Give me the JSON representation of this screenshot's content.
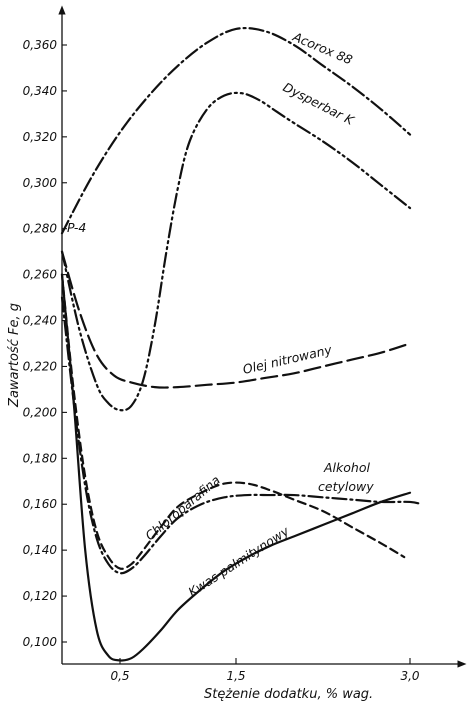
{
  "chart_data": {
    "type": "line",
    "title": "",
    "xlabel": "Stężenie dodatku, % wag.",
    "ylabel": "Zawartość Fe, g",
    "xlim": [
      0,
      3.2
    ],
    "ylim": [
      0.09,
      0.37
    ],
    "x_ticks": [
      {
        "value": 0.5,
        "label": "0,5"
      },
      {
        "value": 1.5,
        "label": "1,5"
      },
      {
        "value": 3.0,
        "label": "3,0"
      }
    ],
    "y_ticks": [
      {
        "value": 0.1,
        "label": "0,100"
      },
      {
        "value": 0.12,
        "label": "0,120"
      },
      {
        "value": 0.14,
        "label": "0,140"
      },
      {
        "value": 0.16,
        "label": "0,160"
      },
      {
        "value": 0.18,
        "label": "0,180"
      },
      {
        "value": 0.2,
        "label": "0,200"
      },
      {
        "value": 0.22,
        "label": "0,220"
      },
      {
        "value": 0.24,
        "label": "0,240"
      },
      {
        "value": 0.26,
        "label": "0,260"
      },
      {
        "value": 0.28,
        "label": "0,280"
      },
      {
        "value": 0.3,
        "label": "0,300"
      },
      {
        "value": 0.32,
        "label": "0,320"
      },
      {
        "value": 0.34,
        "label": "0,340"
      },
      {
        "value": 0.36,
        "label": "0,360"
      }
    ],
    "reference_label": "P-4",
    "reference_value": 0.27,
    "grid": false,
    "legend": "none",
    "series": [
      {
        "name": "Acorox 88",
        "dash": "dashdot",
        "x": [
          0,
          0.25,
          0.5,
          0.75,
          1.0,
          1.25,
          1.5,
          1.75,
          2.0,
          2.25,
          2.5,
          2.75,
          3.0
        ],
        "y": [
          0.278,
          0.302,
          0.322,
          0.338,
          0.351,
          0.361,
          0.367,
          0.366,
          0.36,
          0.351,
          0.342,
          0.332,
          0.321
        ]
      },
      {
        "name": "Dysperbar K",
        "dash": "dashdotdot",
        "x": [
          0,
          0.15,
          0.3,
          0.4,
          0.5,
          0.6,
          0.7,
          0.8,
          0.9,
          1.0,
          1.1,
          1.25,
          1.4,
          1.55,
          1.7,
          1.85,
          2.0,
          2.25,
          2.5,
          2.75,
          3.0
        ],
        "y": [
          0.27,
          0.236,
          0.212,
          0.204,
          0.201,
          0.203,
          0.214,
          0.238,
          0.27,
          0.298,
          0.318,
          0.332,
          0.338,
          0.339,
          0.336,
          0.331,
          0.326,
          0.318,
          0.309,
          0.299,
          0.289
        ]
      },
      {
        "name": "Olej nitrowany",
        "dash": "longdash",
        "x": [
          0,
          0.15,
          0.3,
          0.45,
          0.6,
          0.8,
          1.0,
          1.25,
          1.5,
          1.75,
          2.0,
          2.25,
          2.5,
          2.75,
          3.0
        ],
        "y": [
          0.27,
          0.244,
          0.225,
          0.216,
          0.213,
          0.211,
          0.211,
          0.212,
          0.213,
          0.215,
          0.217,
          0.22,
          0.223,
          0.226,
          0.23
        ]
      },
      {
        "name": "Chloroparafina",
        "dash": "dashdot",
        "x": [
          0,
          0.1,
          0.2,
          0.3,
          0.4,
          0.5,
          0.6,
          0.7,
          0.85,
          1.0,
          1.2,
          1.4,
          1.6,
          1.8,
          2.0,
          2.25,
          2.5,
          2.75,
          3.0,
          3.1
        ],
        "y": [
          0.25,
          0.205,
          0.168,
          0.145,
          0.134,
          0.13,
          0.132,
          0.137,
          0.146,
          0.154,
          0.16,
          0.163,
          0.164,
          0.164,
          0.164,
          0.163,
          0.162,
          0.161,
          0.161,
          0.16
        ]
      },
      {
        "name": "Alkohol cetylowy",
        "dash": "dash",
        "x": [
          0,
          0.1,
          0.2,
          0.3,
          0.4,
          0.5,
          0.6,
          0.7,
          0.85,
          1.0,
          1.2,
          1.4,
          1.6,
          1.8,
          2.0,
          2.25,
          2.5,
          2.75,
          2.95
        ],
        "y": [
          0.26,
          0.21,
          0.172,
          0.148,
          0.137,
          0.132,
          0.134,
          0.14,
          0.15,
          0.159,
          0.165,
          0.169,
          0.169,
          0.166,
          0.162,
          0.157,
          0.15,
          0.143,
          0.137
        ]
      },
      {
        "name": "Kwas palmitynowy",
        "dash": "solid",
        "x": [
          0,
          0.1,
          0.2,
          0.3,
          0.4,
          0.5,
          0.6,
          0.7,
          0.85,
          1.0,
          1.2,
          1.4,
          1.6,
          1.8,
          2.0,
          2.25,
          2.5,
          2.75,
          3.0
        ],
        "y": [
          0.26,
          0.205,
          0.14,
          0.105,
          0.094,
          0.092,
          0.093,
          0.097,
          0.105,
          0.114,
          0.123,
          0.131,
          0.137,
          0.142,
          0.146,
          0.151,
          0.156,
          0.161,
          0.165
        ]
      }
    ]
  }
}
